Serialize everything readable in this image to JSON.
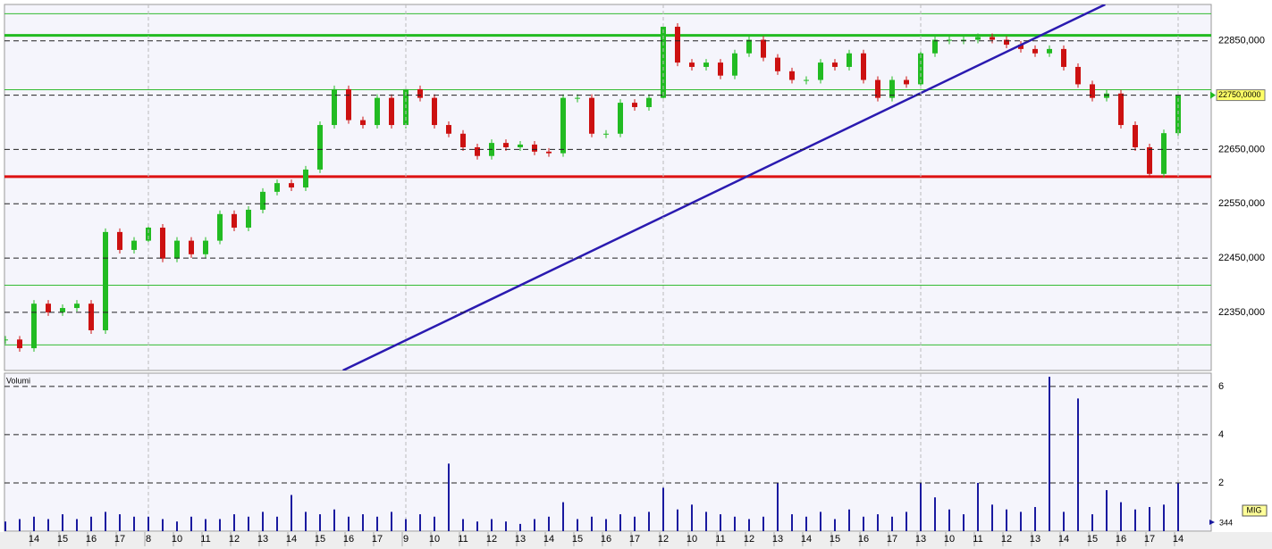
{
  "chart_data": [
    {
      "type": "candlestick",
      "categories": [
        null,
        null,
        "14",
        null,
        "15",
        null,
        "16",
        null,
        "17",
        null,
        "8",
        null,
        "10",
        null,
        "11",
        null,
        "12",
        null,
        "13",
        null,
        "14",
        null,
        "15",
        null,
        "16",
        null,
        "17",
        null,
        "9",
        null,
        "10",
        null,
        "11",
        null,
        "12",
        null,
        "13",
        null,
        "14",
        null,
        "15",
        null,
        "16",
        null,
        "17",
        null,
        "12",
        null,
        "10",
        null,
        "11",
        null,
        "12",
        null,
        "13",
        null,
        "14",
        null,
        "15",
        null,
        "16",
        null,
        "17",
        null,
        "13",
        null,
        "10",
        null,
        "11",
        null,
        "12",
        null,
        "13",
        null,
        "14",
        null,
        "15",
        null,
        "16",
        null,
        "17",
        null,
        "14"
      ],
      "day_starts": [
        10,
        28,
        46,
        64,
        82
      ],
      "day_color": "#33cc33",
      "values": [
        22300,
        22284,
        22366,
        22350,
        22358,
        22366,
        22317,
        22498,
        22465,
        22482,
        22506,
        22449,
        22482,
        22457,
        22482,
        22531,
        22506,
        22539,
        22572,
        22588,
        22580,
        22613,
        22695,
        22761,
        22704,
        22695,
        22745,
        22695,
        22761,
        22745,
        22695,
        22679,
        22654,
        22638,
        22662,
        22654,
        22659,
        22646,
        22643,
        22745,
        22745,
        22679,
        22679,
        22736,
        22728,
        22745,
        22876,
        22810,
        22802,
        22810,
        22786,
        22827,
        22852,
        22819,
        22794,
        22778,
        22778,
        22810,
        22802,
        22827,
        22778,
        22745,
        22778,
        22770,
        22827,
        22852,
        22852,
        22852,
        22857,
        22852,
        22843,
        22835,
        22827,
        22835,
        22802,
        22770,
        22745,
        22753,
        22695,
        22654,
        22605,
        22680,
        22750
      ],
      "up_color": "#22bb22",
      "down_color": "#cc1111",
      "ylim": [
        22243,
        22917
      ],
      "yticks": [
        {
          "value": 22350,
          "label": "22350,000"
        },
        {
          "value": 22450,
          "label": "22450,000"
        },
        {
          "value": 22550,
          "label": "22550,000"
        },
        {
          "value": 22650,
          "label": "22650,000"
        },
        {
          "value": 22750,
          "label": "22750,000"
        },
        {
          "value": 22850,
          "label": "22850,000"
        }
      ],
      "levels": [
        {
          "value": 22900,
          "color": "#33bb33",
          "width": 1
        },
        {
          "value": 22860,
          "color": "#22bb22",
          "width": 3
        },
        {
          "value": 22760,
          "color": "#33bb33",
          "width": 1
        },
        {
          "value": 22600,
          "color": "#dd1111",
          "width": 3
        },
        {
          "value": 22400,
          "color": "#33bb33",
          "width": 1
        },
        {
          "value": 22290,
          "color": "#33bb33",
          "width": 1
        }
      ],
      "trendline": {
        "color": "#2a1ab0",
        "start": [
          23.6,
          22243
        ],
        "end": [
          76.9,
          22917
        ]
      },
      "last_price_label": "22750,0000"
    },
    {
      "type": "bar",
      "title": "Volumi",
      "color": "#1a1aa0",
      "values": [
        0.4,
        0.5,
        0.6,
        0.5,
        0.7,
        0.5,
        0.6,
        0.8,
        0.7,
        0.6,
        0.6,
        0.5,
        0.4,
        0.6,
        0.5,
        0.5,
        0.7,
        0.6,
        0.8,
        0.6,
        1.5,
        0.8,
        0.7,
        0.9,
        0.6,
        0.7,
        0.6,
        0.8,
        0.5,
        0.7,
        0.6,
        2.8,
        0.5,
        0.4,
        0.5,
        0.4,
        0.3,
        0.5,
        0.6,
        1.2,
        0.5,
        0.6,
        0.5,
        0.7,
        0.6,
        0.8,
        1.8,
        0.9,
        1.1,
        0.8,
        0.7,
        0.6,
        0.5,
        0.6,
        2.0,
        0.7,
        0.6,
        0.8,
        0.5,
        0.9,
        0.6,
        0.7,
        0.6,
        0.8,
        2.0,
        1.4,
        0.9,
        0.7,
        2.0,
        1.1,
        0.9,
        0.8,
        1.0,
        6.4,
        0.8,
        5.5,
        0.7,
        1.7,
        1.2,
        0.9,
        1.0,
        1.1,
        2.0
      ],
      "ylim": [
        0,
        6.55
      ],
      "yticks": [
        2,
        4,
        6
      ],
      "indicator_label": "MIG",
      "count_label": "344"
    }
  ]
}
